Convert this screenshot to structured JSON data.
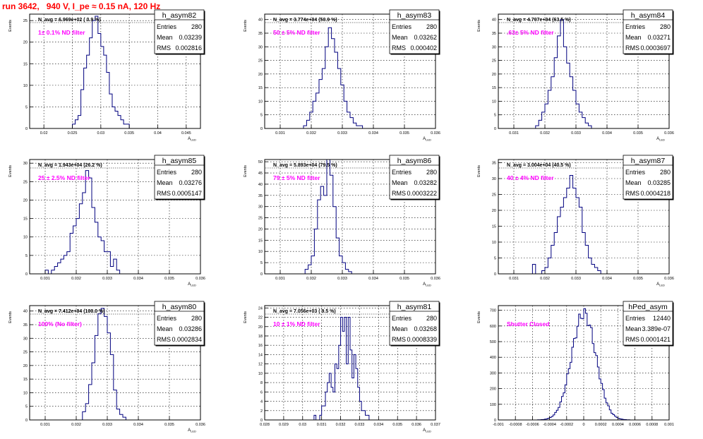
{
  "run_title": "run 3642,   940 V, I_pe ≈ 0.15 nA, 120 Hz",
  "chart_data": [
    {
      "type": "histogram",
      "name": "h_asym82",
      "annotation": "N_avg = 6.969e+02 ( 0.9 %)",
      "filter_label": "1± 0.1% ND filter",
      "stats": {
        "entries_label": "Entries",
        "entries": "280",
        "mean_label": "Mean",
        "mean": "0.03239",
        "rms_label": "RMS",
        "rms": "0.002816"
      },
      "xlabel": "A_LED",
      "ylabel": "Events",
      "xlim": [
        0.0175,
        0.0475
      ],
      "ylim": [
        0,
        26.5
      ],
      "xticks": [
        {
          "v": 0.02,
          "t": "0.02"
        },
        {
          "v": 0.025,
          "t": "0.025"
        },
        {
          "v": 0.03,
          "t": "0.03"
        },
        {
          "v": 0.035,
          "t": "0.035"
        },
        {
          "v": 0.04,
          "t": "0.04"
        },
        {
          "v": 0.045,
          "t": "0.045"
        }
      ],
      "yticks": [
        0,
        5,
        10,
        15,
        20,
        25
      ],
      "bins": {
        "x0": 0.025,
        "w": 0.0005,
        "counts": [
          1,
          2,
          3,
          9,
          14,
          17,
          21,
          25,
          26,
          22,
          19,
          17,
          13,
          8,
          5,
          4,
          3,
          2,
          1,
          1
        ]
      }
    },
    {
      "type": "histogram",
      "name": "h_asym83",
      "annotation": "N_avg = 3.774e+04 (50.9 %)",
      "filter_label": "50 ± 5% ND filter",
      "stats": {
        "entries_label": "Entries",
        "entries": "280",
        "mean_label": "Mean",
        "mean": "0.03262",
        "rms_label": "RMS",
        "rms": "0.000402"
      },
      "xlabel": "A_LED",
      "ylabel": "Events",
      "xlim": [
        0.0305,
        0.036
      ],
      "ylim": [
        0,
        42
      ],
      "xticks": [
        {
          "v": 0.031,
          "t": "0.031"
        },
        {
          "v": 0.032,
          "t": "0.032"
        },
        {
          "v": 0.033,
          "t": "0.033"
        },
        {
          "v": 0.034,
          "t": "0.034"
        },
        {
          "v": 0.035,
          "t": "0.035"
        },
        {
          "v": 0.036,
          "t": "0.036"
        }
      ],
      "yticks": [
        0,
        5,
        10,
        15,
        20,
        25,
        30,
        35,
        40
      ],
      "bins": {
        "x0": 0.03175,
        "w": 0.0001,
        "counts": [
          1,
          3,
          6,
          10,
          13,
          18,
          22,
          30,
          37,
          33,
          28,
          22,
          16,
          10,
          6,
          4,
          2,
          1,
          1
        ]
      }
    },
    {
      "type": "histogram",
      "name": "h_asym84",
      "annotation": "N_avg = 4.707e+04 (63.5 %)",
      "filter_label": ".63± 5% ND filter",
      "stats": {
        "entries_label": "Entries",
        "entries": "280",
        "mean_label": "Mean",
        "mean": "0.03271",
        "rms_label": "RMS",
        "rms": "0.0003697"
      },
      "xlabel": "A_LED",
      "ylabel": "Events",
      "xlim": [
        0.0305,
        0.036
      ],
      "ylim": [
        0,
        42
      ],
      "xticks": [
        {
          "v": 0.031,
          "t": "0.031"
        },
        {
          "v": 0.032,
          "t": "0.032"
        },
        {
          "v": 0.033,
          "t": "0.033"
        },
        {
          "v": 0.034,
          "t": "0.034"
        },
        {
          "v": 0.035,
          "t": "0.035"
        },
        {
          "v": 0.036,
          "t": "0.036"
        }
      ],
      "yticks": [
        0,
        5,
        10,
        15,
        20,
        25,
        30,
        35,
        40
      ],
      "bins": {
        "x0": 0.0317,
        "w": 0.0001,
        "counts": [
          1,
          3,
          6,
          9,
          14,
          19,
          26,
          34,
          40,
          30,
          24,
          19,
          14,
          9,
          6,
          4,
          2,
          1
        ]
      }
    },
    {
      "type": "histogram",
      "name": "h_asym85",
      "annotation": "N_avg = 1.943e+04 (26.2 %)",
      "filter_label": "25 ± 2.5% ND filter",
      "stats": {
        "entries_label": "Entries",
        "entries": "280",
        "mean_label": "Mean",
        "mean": "0.03276",
        "rms_label": "RMS",
        "rms": "0.0005147"
      },
      "xlabel": "A_LED",
      "ylabel": "Events",
      "xlim": [
        0.0305,
        0.036
      ],
      "ylim": [
        0,
        31
      ],
      "xticks": [
        {
          "v": 0.031,
          "t": "0.031"
        },
        {
          "v": 0.032,
          "t": "0.032"
        },
        {
          "v": 0.033,
          "t": "0.033"
        },
        {
          "v": 0.034,
          "t": "0.034"
        },
        {
          "v": 0.035,
          "t": "0.035"
        },
        {
          "v": 0.036,
          "t": "0.036"
        }
      ],
      "yticks": [
        0,
        5,
        10,
        15,
        20,
        25,
        30
      ],
      "bins": {
        "x0": 0.031,
        "w": 0.0001,
        "counts": [
          1,
          0,
          1,
          2,
          3,
          4,
          5,
          6,
          11,
          13,
          15,
          19,
          22,
          28,
          26,
          18,
          14,
          10,
          9,
          6,
          6,
          2,
          4,
          1
        ]
      }
    },
    {
      "type": "histogram",
      "name": "h_asym86",
      "annotation": "N_avg = 5.893e+04 (79.5 %)",
      "filter_label": "79 ± 5% ND filter",
      "stats": {
        "entries_label": "Entries",
        "entries": "280",
        "mean_label": "Mean",
        "mean": "0.03282",
        "rms_label": "RMS",
        "rms": "0.0003222"
      },
      "xlabel": "A_LED",
      "ylabel": "Events",
      "xlim": [
        0.0305,
        0.036
      ],
      "ylim": [
        0,
        51
      ],
      "xticks": [
        {
          "v": 0.031,
          "t": "0.031"
        },
        {
          "v": 0.032,
          "t": "0.032"
        },
        {
          "v": 0.033,
          "t": "0.033"
        },
        {
          "v": 0.034,
          "t": "0.034"
        },
        {
          "v": 0.035,
          "t": "0.035"
        },
        {
          "v": 0.036,
          "t": "0.036"
        }
      ],
      "yticks": [
        0,
        5,
        10,
        15,
        20,
        25,
        30,
        35,
        40,
        45,
        50
      ],
      "bins": {
        "x0": 0.0318,
        "w": 0.0001,
        "counts": [
          2,
          4,
          8,
          20,
          33,
          39,
          35,
          51,
          44,
          30,
          16,
          8,
          5,
          2,
          1
        ]
      }
    },
    {
      "type": "histogram",
      "name": "h_asym87",
      "annotation": "N_avg = 3.004e+04 (40.5 %)",
      "filter_label": "40 ± 4% ND filter",
      "stats": {
        "entries_label": "Entries",
        "entries": "280",
        "mean_label": "Mean",
        "mean": "0.03285",
        "rms_label": "RMS",
        "rms": "0.0004218"
      },
      "xlabel": "A_LED",
      "ylabel": "Events",
      "xlim": [
        0.0305,
        0.036
      ],
      "ylim": [
        0,
        36
      ],
      "xticks": [
        {
          "v": 0.031,
          "t": "0.031"
        },
        {
          "v": 0.032,
          "t": "0.032"
        },
        {
          "v": 0.033,
          "t": "0.033"
        },
        {
          "v": 0.034,
          "t": "0.034"
        },
        {
          "v": 0.035,
          "t": "0.035"
        },
        {
          "v": 0.036,
          "t": "0.036"
        }
      ],
      "yticks": [
        0,
        5,
        10,
        15,
        20,
        25,
        30,
        35
      ],
      "bins": {
        "x0": 0.0316,
        "w": 0.0001,
        "counts": [
          3,
          0,
          0,
          1,
          2,
          5,
          9,
          13,
          18,
          21,
          24,
          27,
          31,
          27,
          24,
          21,
          13,
          9,
          5,
          3,
          2,
          1
        ]
      }
    },
    {
      "type": "histogram",
      "name": "h_asym80",
      "annotation": "N_avg = 7.412e+04 (100.0 %)",
      "filter_label": "100% (No filter)",
      "stats": {
        "entries_label": "Entries",
        "entries": "280",
        "mean_label": "Mean",
        "mean": "0.03286",
        "rms_label": "RMS",
        "rms": "0.0002834"
      },
      "xlabel": "A_LED",
      "ylabel": "Events",
      "xlim": [
        0.0305,
        0.036
      ],
      "ylim": [
        0,
        42
      ],
      "xticks": [
        {
          "v": 0.031,
          "t": "0.031"
        },
        {
          "v": 0.032,
          "t": "0.032"
        },
        {
          "v": 0.033,
          "t": "0.033"
        },
        {
          "v": 0.034,
          "t": "0.034"
        },
        {
          "v": 0.035,
          "t": "0.035"
        },
        {
          "v": 0.036,
          "t": "0.036"
        }
      ],
      "yticks": [
        0,
        5,
        10,
        15,
        20,
        25,
        30,
        35,
        40
      ],
      "bins": {
        "x0": 0.0322,
        "w": 0.0001,
        "counts": [
          3,
          6,
          13,
          21,
          31,
          39,
          41,
          38,
          32,
          24,
          11,
          4,
          2,
          1
        ]
      }
    },
    {
      "type": "histogram",
      "name": "h_asym81",
      "annotation": "N_avg = 7.056e+03 ( 9.5 %)",
      "filter_label": "10 ± 1% ND filter",
      "stats": {
        "entries_label": "Entries",
        "entries": "280",
        "mean_label": "Mean",
        "mean": "0.03268",
        "rms_label": "RMS",
        "rms": "0.0008339"
      },
      "xlabel": "A_LED",
      "ylabel": "Events",
      "xlim": [
        0.028,
        0.037
      ],
      "ylim": [
        0,
        24.5
      ],
      "xticks": [
        {
          "v": 0.028,
          "t": "0.028"
        },
        {
          "v": 0.029,
          "t": "0.029"
        },
        {
          "v": 0.03,
          "t": "0.03"
        },
        {
          "v": 0.031,
          "t": "0.031"
        },
        {
          "v": 0.032,
          "t": "0.032"
        },
        {
          "v": 0.033,
          "t": "0.033"
        },
        {
          "v": 0.034,
          "t": "0.034"
        },
        {
          "v": 0.035,
          "t": "0.035"
        },
        {
          "v": 0.036,
          "t": "0.036"
        },
        {
          "v": 0.037,
          "t": "0.037"
        }
      ],
      "yticks": [
        0,
        2,
        4,
        6,
        8,
        10,
        12,
        14,
        16,
        18,
        20,
        22,
        24
      ],
      "bins": {
        "x0": 0.0306,
        "w": 0.0001,
        "counts": [
          1,
          0,
          0,
          1,
          3,
          3,
          6,
          8,
          10,
          7,
          6,
          12,
          11,
          16,
          22,
          19,
          22,
          12,
          22,
          15,
          9,
          14,
          11,
          7,
          4,
          2,
          2,
          1,
          1
        ]
      }
    },
    {
      "type": "histogram",
      "name": "hPed_asym",
      "annotation": "",
      "filter_label": "Shutter Closed",
      "stats": {
        "entries_label": "Entries",
        "entries": "12440",
        "mean_label": "Mean",
        "mean": "3.389e-07",
        "rms_label": "RMS",
        "rms": "0.0001421"
      },
      "xlabel": "",
      "ylabel": "Events",
      "xlim": [
        -0.001,
        0.001
      ],
      "ylim": [
        0,
        730
      ],
      "xticks": [
        {
          "v": -0.001,
          "t": "-0.001"
        },
        {
          "v": -0.0008,
          "t": "-0.0008"
        },
        {
          "v": -0.0006,
          "t": "-0.0006"
        },
        {
          "v": -0.0004,
          "t": "-0.0004"
        },
        {
          "v": -0.0002,
          "t": "-0.0002"
        },
        {
          "v": 0,
          "t": "0"
        },
        {
          "v": 0.0002,
          "t": "0.0002"
        },
        {
          "v": 0.0004,
          "t": "0.0004"
        },
        {
          "v": 0.0006,
          "t": "0.0006"
        },
        {
          "v": 0.0008,
          "t": "0.0008"
        },
        {
          "v": 0.001,
          "t": "0.001"
        }
      ],
      "yticks": [
        0,
        100,
        200,
        300,
        400,
        500,
        600,
        700
      ],
      "gauss": {
        "mean": 3.389e-07,
        "sigma": 0.0001421,
        "peak": 680,
        "x0": -0.0006,
        "x1": 0.0006,
        "w": 2e-05
      }
    }
  ]
}
